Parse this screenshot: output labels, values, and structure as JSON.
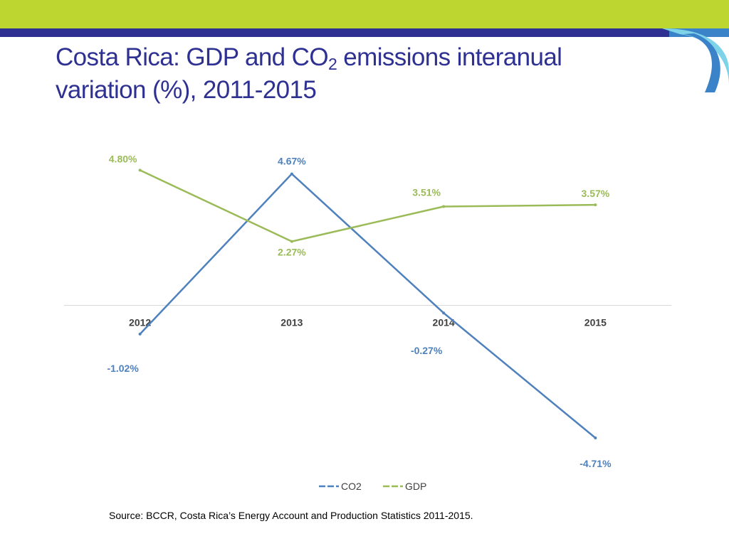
{
  "slide": {
    "title_part1": "Costa Rica: GDP and CO",
    "title_subscript": "2",
    "title_part2": " emissions interanual",
    "title_line2": "variation (%), 2011-2015",
    "source": "Source: BCCR, Costa Rica’s Energy Account and Production Statistics 2011-2015."
  },
  "colors": {
    "title": "#2e3192",
    "banner_green": "#bed630",
    "banner_navy": "#2e3192",
    "banner_blue": "#3a83c9",
    "banner_light": "#7fd3e8",
    "gdp": "#9bbb59",
    "co2": "#4f81bd",
    "axis_label": "#404040",
    "axis_line": "#d9d9d9"
  },
  "chart_data": {
    "type": "line",
    "title": "",
    "xlabel": "",
    "ylabel": "",
    "categories": [
      "2012",
      "2013",
      "2014",
      "2015"
    ],
    "series": [
      {
        "name": "CO2",
        "values": [
          -1.02,
          4.67,
          -0.27,
          -4.71
        ],
        "labels": [
          "-1.02%",
          "4.67%",
          "-0.27%",
          "-4.71%"
        ]
      },
      {
        "name": "GDP",
        "values": [
          4.8,
          2.27,
          3.51,
          3.57
        ],
        "labels": [
          "4.80%",
          "2.27%",
          "3.51%",
          "3.57%"
        ]
      }
    ],
    "ylim": [
      -6,
      6
    ],
    "grid": false,
    "legend": "bottom-center"
  }
}
